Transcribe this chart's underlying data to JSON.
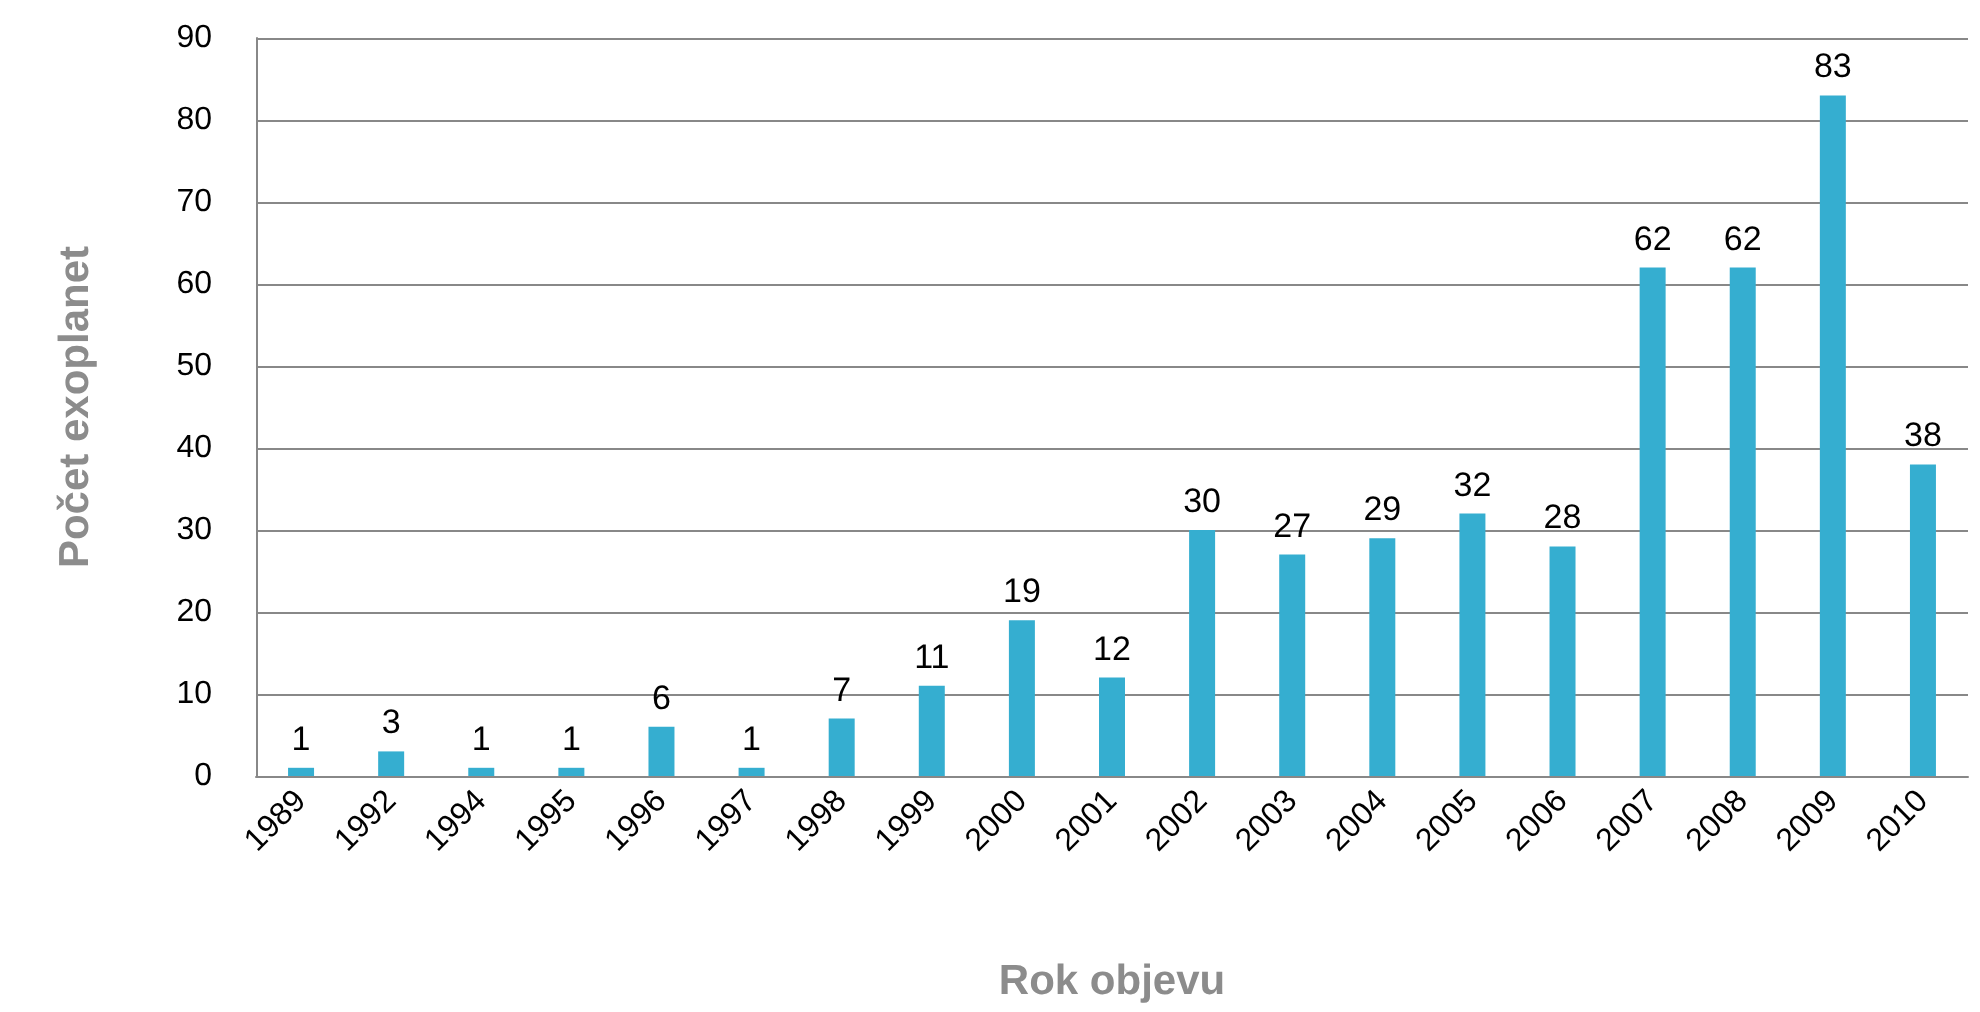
{
  "chart_data": {
    "type": "bar",
    "xlabel": "Rok objevu",
    "ylabel": "Počet exoplanet",
    "categories": [
      "1989",
      "1992",
      "1994",
      "1995",
      "1996",
      "1997",
      "1998",
      "1999",
      "2000",
      "2001",
      "2002",
      "2003",
      "2004",
      "2005",
      "2006",
      "2007",
      "2008",
      "2009",
      "2010"
    ],
    "values": [
      1,
      3,
      1,
      1,
      6,
      1,
      7,
      11,
      19,
      12,
      30,
      27,
      29,
      32,
      28,
      62,
      62,
      83,
      38
    ],
    "color": "#35aed0",
    "ylim": [
      0,
      90
    ],
    "yticks": [
      0,
      10,
      20,
      30,
      40,
      50,
      60,
      70,
      80,
      90
    ],
    "grid": "y",
    "data_labels": true
  }
}
